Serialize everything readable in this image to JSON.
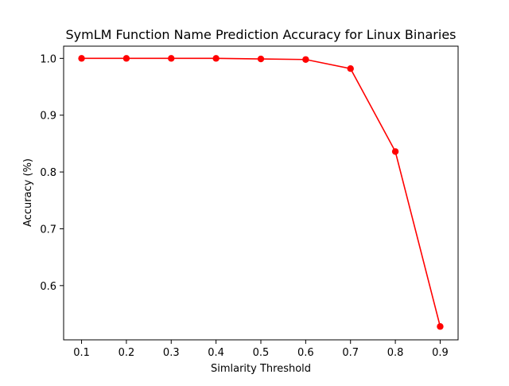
{
  "chart_data": {
    "type": "line",
    "title": "SymLM Function Name Prediction Accuracy for Linux Binaries",
    "xlabel": "Simlarity Threshold",
    "ylabel": "Accuracy (%)",
    "x": [
      0.1,
      0.2,
      0.3,
      0.4,
      0.5,
      0.6,
      0.7,
      0.8,
      0.9
    ],
    "series": [
      {
        "values": [
          1.0,
          1.0,
          1.0,
          1.0,
          0.999,
          0.998,
          0.982,
          0.836,
          0.528
        ],
        "color": "#ff0000",
        "marker": "circle"
      }
    ],
    "xticks": [
      "0.1",
      "0.2",
      "0.3",
      "0.4",
      "0.5",
      "0.6",
      "0.7",
      "0.8",
      "0.9"
    ],
    "yticks": [
      "0.6",
      "0.7",
      "0.8",
      "0.9",
      "1.0"
    ],
    "xtick_values": [
      0.1,
      0.2,
      0.3,
      0.4,
      0.5,
      0.6,
      0.7,
      0.8,
      0.9
    ],
    "ytick_values": [
      0.6,
      0.7,
      0.8,
      0.9,
      1.0
    ],
    "xlim": [
      0.06,
      0.94
    ],
    "ylim": [
      0.5045,
      1.0215
    ],
    "grid": false,
    "legend": "none"
  }
}
